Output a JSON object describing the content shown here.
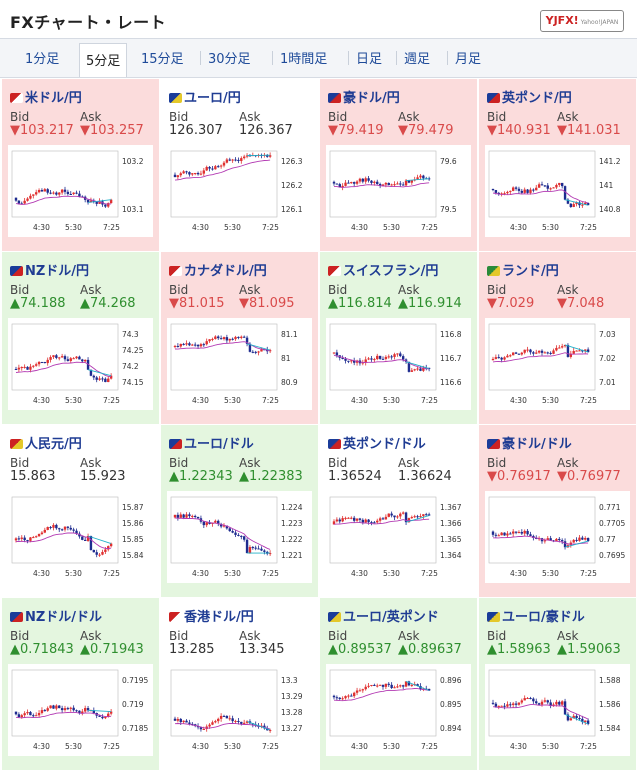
{
  "header": {
    "title": "FXチャート・レート",
    "logo": "YJFX!",
    "logo_sub": "Yahoo!JAPAN"
  },
  "tabs": [
    {
      "label": "1分足",
      "active": false
    },
    {
      "label": "5分足",
      "active": true
    },
    {
      "label": "15分足",
      "active": false
    },
    {
      "label": "30分足",
      "active": false
    },
    {
      "label": "1時間足",
      "active": false
    },
    {
      "label": "日足",
      "active": false
    },
    {
      "label": "週足",
      "active": false
    },
    {
      "label": "月足",
      "active": false
    }
  ],
  "colors": {
    "up_bg": "#e4f6df",
    "down_bg": "#fbdcdc",
    "flat_bg": "#ffffff",
    "up_text": "#2f8f2f",
    "down_text": "#d94a4a",
    "candle_up": "#e03030",
    "candle_down": "#1e2b8f",
    "ma_line": "#b33ab3",
    "last_line": "#20b0c8"
  },
  "labels": {
    "bid": "Bid",
    "ask": "Ask"
  },
  "pairs": [
    {
      "name": "米ドル/円",
      "dir": "down",
      "bid": "103.217",
      "ask": "103.257",
      "bid_arrow": "▼",
      "ask_arrow": "▼",
      "flag": [
        "#c22",
        "#fff"
      ],
      "chart_data": {
        "type": "candlestick",
        "y_ticks": [
          "103.2",
          "103.1"
        ],
        "x_ticks": [
          "4:30",
          "5:30",
          "7:25"
        ]
      }
    },
    {
      "name": "ユーロ/円",
      "dir": "flat",
      "bid": "126.307",
      "ask": "126.367",
      "bid_arrow": "",
      "ask_arrow": "",
      "flag": [
        "#1a3c99",
        "#e4c82a"
      ],
      "chart_data": {
        "type": "candlestick",
        "y_ticks": [
          "126.3",
          "126.2",
          "126.1"
        ],
        "x_ticks": [
          "4:30",
          "5:30",
          "7:25"
        ]
      }
    },
    {
      "name": "豪ドル/円",
      "dir": "down",
      "bid": "79.419",
      "ask": "79.479",
      "bid_arrow": "▼",
      "ask_arrow": "▼",
      "flag": [
        "#1a3c99",
        "#c22"
      ],
      "chart_data": {
        "type": "candlestick",
        "y_ticks": [
          "79.6",
          "79.5"
        ],
        "x_ticks": [
          "4:30",
          "5:30",
          "7:25"
        ]
      }
    },
    {
      "name": "英ポンド/円",
      "dir": "down",
      "bid": "140.931",
      "ask": "141.031",
      "bid_arrow": "▼",
      "ask_arrow": "▼",
      "flag": [
        "#1a3c99",
        "#c22"
      ],
      "chart_data": {
        "type": "candlestick",
        "y_ticks": [
          "141.2",
          "141",
          "140.8"
        ],
        "x_ticks": [
          "4:30",
          "5:30",
          "7:25"
        ]
      }
    },
    {
      "name": "NZドル/円",
      "dir": "up",
      "bid": "74.188",
      "ask": "74.268",
      "bid_arrow": "▲",
      "ask_arrow": "▲",
      "flag": [
        "#1a3c99",
        "#c22"
      ],
      "chart_data": {
        "type": "candlestick",
        "y_ticks": [
          "74.3",
          "74.25",
          "74.2",
          "74.15"
        ],
        "x_ticks": [
          "4:30",
          "5:30",
          "7:25"
        ]
      }
    },
    {
      "name": "カナダドル/円",
      "dir": "down",
      "bid": "81.015",
      "ask": "81.095",
      "bid_arrow": "▼",
      "ask_arrow": "▼",
      "flag": [
        "#c22",
        "#fff"
      ],
      "chart_data": {
        "type": "candlestick",
        "y_ticks": [
          "81.1",
          "81",
          "80.9"
        ],
        "x_ticks": [
          "4:30",
          "5:30",
          "7:25"
        ]
      }
    },
    {
      "name": "スイスフラン/円",
      "dir": "up",
      "bid": "116.814",
      "ask": "116.914",
      "bid_arrow": "▲",
      "ask_arrow": "▲",
      "flag": [
        "#c22",
        "#fff"
      ],
      "chart_data": {
        "type": "candlestick",
        "y_ticks": [
          "116.8",
          "116.7",
          "116.6"
        ],
        "x_ticks": [
          "4:30",
          "5:30",
          "7:25"
        ]
      }
    },
    {
      "name": "ランド/円",
      "dir": "down",
      "bid": "7.029",
      "ask": "7.048",
      "bid_arrow": "▼",
      "ask_arrow": "▼",
      "flag": [
        "#2a8a3a",
        "#e4c82a"
      ],
      "chart_data": {
        "type": "candlestick",
        "y_ticks": [
          "7.03",
          "7.02",
          "7.01"
        ],
        "x_ticks": [
          "4:30",
          "5:30",
          "7:25"
        ]
      }
    },
    {
      "name": "人民元/円",
      "dir": "flat",
      "bid": "15.863",
      "ask": "15.923",
      "bid_arrow": "",
      "ask_arrow": "",
      "flag": [
        "#c22",
        "#e4c82a"
      ],
      "chart_data": {
        "type": "candlestick",
        "y_ticks": [
          "15.87",
          "15.86",
          "15.85",
          "15.84"
        ],
        "x_ticks": [
          "4:30",
          "5:30",
          "7:25"
        ]
      }
    },
    {
      "name": "ユーロ/ドル",
      "dir": "up",
      "bid": "1.22343",
      "ask": "1.22383",
      "bid_arrow": "▲",
      "ask_arrow": "▲",
      "flag": [
        "#1a3c99",
        "#c22"
      ],
      "chart_data": {
        "type": "candlestick",
        "y_ticks": [
          "1.224",
          "1.223",
          "1.222",
          "1.221"
        ],
        "x_ticks": [
          "4:30",
          "5:30",
          "7:25"
        ]
      }
    },
    {
      "name": "英ポンド/ドル",
      "dir": "flat",
      "bid": "1.36524",
      "ask": "1.36624",
      "bid_arrow": "",
      "ask_arrow": "",
      "flag": [
        "#1a3c99",
        "#c22"
      ],
      "chart_data": {
        "type": "candlestick",
        "y_ticks": [
          "1.367",
          "1.366",
          "1.365",
          "1.364"
        ],
        "x_ticks": [
          "4:30",
          "5:30",
          "7:25"
        ]
      }
    },
    {
      "name": "豪ドル/ドル",
      "dir": "down",
      "bid": "0.76917",
      "ask": "0.76977",
      "bid_arrow": "▼",
      "ask_arrow": "▼",
      "flag": [
        "#1a3c99",
        "#c22"
      ],
      "chart_data": {
        "type": "candlestick",
        "y_ticks": [
          "0.771",
          "0.7705",
          "0.77",
          "0.7695"
        ],
        "x_ticks": [
          "4:30",
          "5:30",
          "7:25"
        ]
      }
    },
    {
      "name": "NZドル/ドル",
      "dir": "up",
      "bid": "0.71843",
      "ask": "0.71943",
      "bid_arrow": "▲",
      "ask_arrow": "▲",
      "flag": [
        "#1a3c99",
        "#c22"
      ],
      "chart_data": {
        "type": "candlestick",
        "y_ticks": [
          "0.7195",
          "0.719",
          "0.7185"
        ],
        "x_ticks": [
          "4:30",
          "5:30",
          "7:25"
        ]
      }
    },
    {
      "name": "香港ドル/円",
      "dir": "flat",
      "bid": "13.285",
      "ask": "13.345",
      "bid_arrow": "",
      "ask_arrow": "",
      "flag": [
        "#c22",
        "#fff"
      ],
      "chart_data": {
        "type": "candlestick",
        "y_ticks": [
          "13.3",
          "13.29",
          "13.28",
          "13.27"
        ],
        "x_ticks": [
          "4:30",
          "5:30",
          "7:25"
        ]
      }
    },
    {
      "name": "ユーロ/英ポンド",
      "dir": "up",
      "bid": "0.89537",
      "ask": "0.89637",
      "bid_arrow": "▲",
      "ask_arrow": "▲",
      "flag": [
        "#1a3c99",
        "#e4c82a"
      ],
      "chart_data": {
        "type": "candlestick",
        "y_ticks": [
          "0.896",
          "0.895",
          "0.894"
        ],
        "x_ticks": [
          "4:30",
          "5:30",
          "7:25"
        ]
      }
    },
    {
      "name": "ユーロ/豪ドル",
      "dir": "up",
      "bid": "1.58963",
      "ask": "1.59063",
      "bid_arrow": "▲",
      "ask_arrow": "▲",
      "flag": [
        "#1a3c99",
        "#e4c82a"
      ],
      "chart_data": {
        "type": "candlestick",
        "y_ticks": [
          "1.588",
          "1.586",
          "1.584"
        ],
        "x_ticks": [
          "4:30",
          "5:30",
          "7:25"
        ]
      }
    }
  ]
}
